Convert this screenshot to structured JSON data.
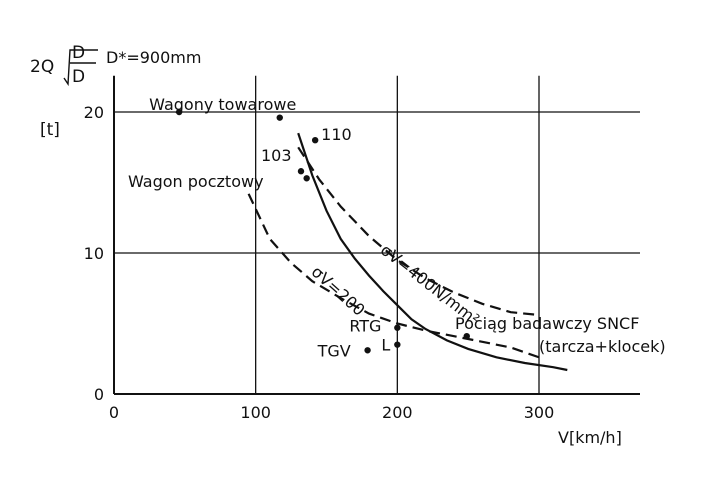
{
  "chart_data": {
    "type": "scatter",
    "ylabel_top": "2Q",
    "ylabel_frac_num": "D",
    "ylabel_frac_den": "D",
    "ylabel_unit": "[t]",
    "param_note": "D*=900mm",
    "xlabel": "V[km/h]",
    "xlim": [
      0,
      360
    ],
    "ylim": [
      0,
      22
    ],
    "xticks": [
      0,
      100,
      200,
      300
    ],
    "yticks": [
      0,
      10,
      20
    ],
    "grid": true,
    "series": [
      {
        "style": "solid",
        "label": "",
        "x": [
          130,
          140,
          150,
          160,
          170,
          180,
          190,
          200,
          210,
          220,
          235,
          250,
          270,
          290,
          310,
          320
        ],
        "y": [
          18.5,
          15.5,
          13.0,
          11.0,
          9.6,
          8.4,
          7.3,
          6.3,
          5.3,
          4.6,
          3.8,
          3.2,
          2.6,
          2.2,
          1.9,
          1.7
        ]
      },
      {
        "style": "dashed",
        "label": "σV=400N/mm²",
        "x": [
          130,
          145,
          160,
          180,
          200,
          220,
          240,
          260,
          280,
          300
        ],
        "y": [
          17.5,
          15.2,
          13.3,
          11.2,
          9.5,
          8.2,
          7.2,
          6.4,
          5.8,
          5.6
        ]
      },
      {
        "style": "dashed",
        "label": "σV=200",
        "x": [
          95,
          110,
          125,
          140,
          160,
          180,
          200,
          220,
          250,
          280,
          300
        ],
        "y": [
          14.2,
          11.0,
          9.3,
          8.0,
          6.8,
          5.7,
          5.0,
          4.5,
          3.9,
          3.3,
          2.6
        ]
      }
    ],
    "points": [
      {
        "x": 46,
        "y": 20.0,
        "label": "Wagony towarowe"
      },
      {
        "x": 117,
        "y": 19.6,
        "label": ""
      },
      {
        "x": 142,
        "y": 18.0,
        "label": "110"
      },
      {
        "x": 132,
        "y": 15.8,
        "label": "103"
      },
      {
        "x": 136,
        "y": 15.3,
        "label": ""
      },
      {
        "x": 179,
        "y": 3.1,
        "label": "TGV"
      },
      {
        "x": 200,
        "y": 4.7,
        "label": "RTG"
      },
      {
        "x": 200,
        "y": 3.5,
        "label": "L"
      },
      {
        "x": 249,
        "y": 4.1,
        "label": ""
      }
    ],
    "annotations": {
      "wagon_pocztowy": "Wagon pocztowy",
      "sncf_line1": "Pociąg badawczy SNCF",
      "sncf_line2": "(tarcza+klocek)"
    }
  }
}
